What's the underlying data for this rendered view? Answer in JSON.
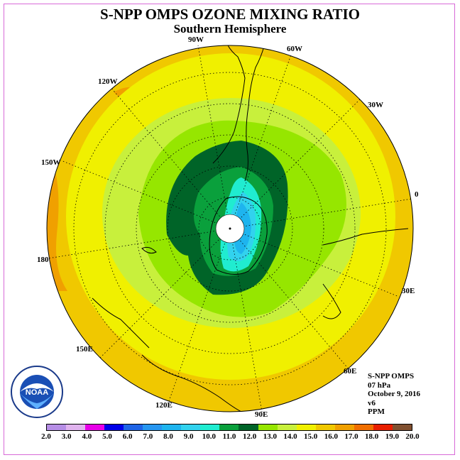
{
  "title": "S-NPP OMPS OZONE MIXING RATIO",
  "subtitle": "Southern Hemisphere",
  "longitude_labels": [
    "90W",
    "60W",
    "30W",
    "0",
    "30E",
    "60E",
    "90E",
    "120E",
    "150E",
    "180",
    "150W",
    "120W"
  ],
  "info": {
    "instrument": "S-NPP OMPS",
    "level": "07 hPa",
    "date": "October 9, 2016",
    "version": "v6",
    "units": "PPM"
  },
  "logo": {
    "text": "NOAA",
    "icon": "noaa-logo"
  },
  "colorbar": {
    "ticks": [
      "2.0",
      "3.0",
      "4.0",
      "5.0",
      "6.0",
      "7.0",
      "8.0",
      "9.0",
      "10.0",
      "11.0",
      "12.0",
      "13.0",
      "14.0",
      "15.0",
      "16.0",
      "17.0",
      "18.0",
      "19.0",
      "20.0"
    ],
    "colors": [
      "#b68ee6",
      "#e0b3ee",
      "#e800e8",
      "#0000e8",
      "#1e64e6",
      "#2696f0",
      "#1eb4ee",
      "#32d2ee",
      "#20ecd0",
      "#0aa03c",
      "#006428",
      "#96e600",
      "#c8f03c",
      "#f0f000",
      "#f0c800",
      "#f0a000",
      "#f06e00",
      "#e81e00",
      "#805030"
    ]
  }
}
